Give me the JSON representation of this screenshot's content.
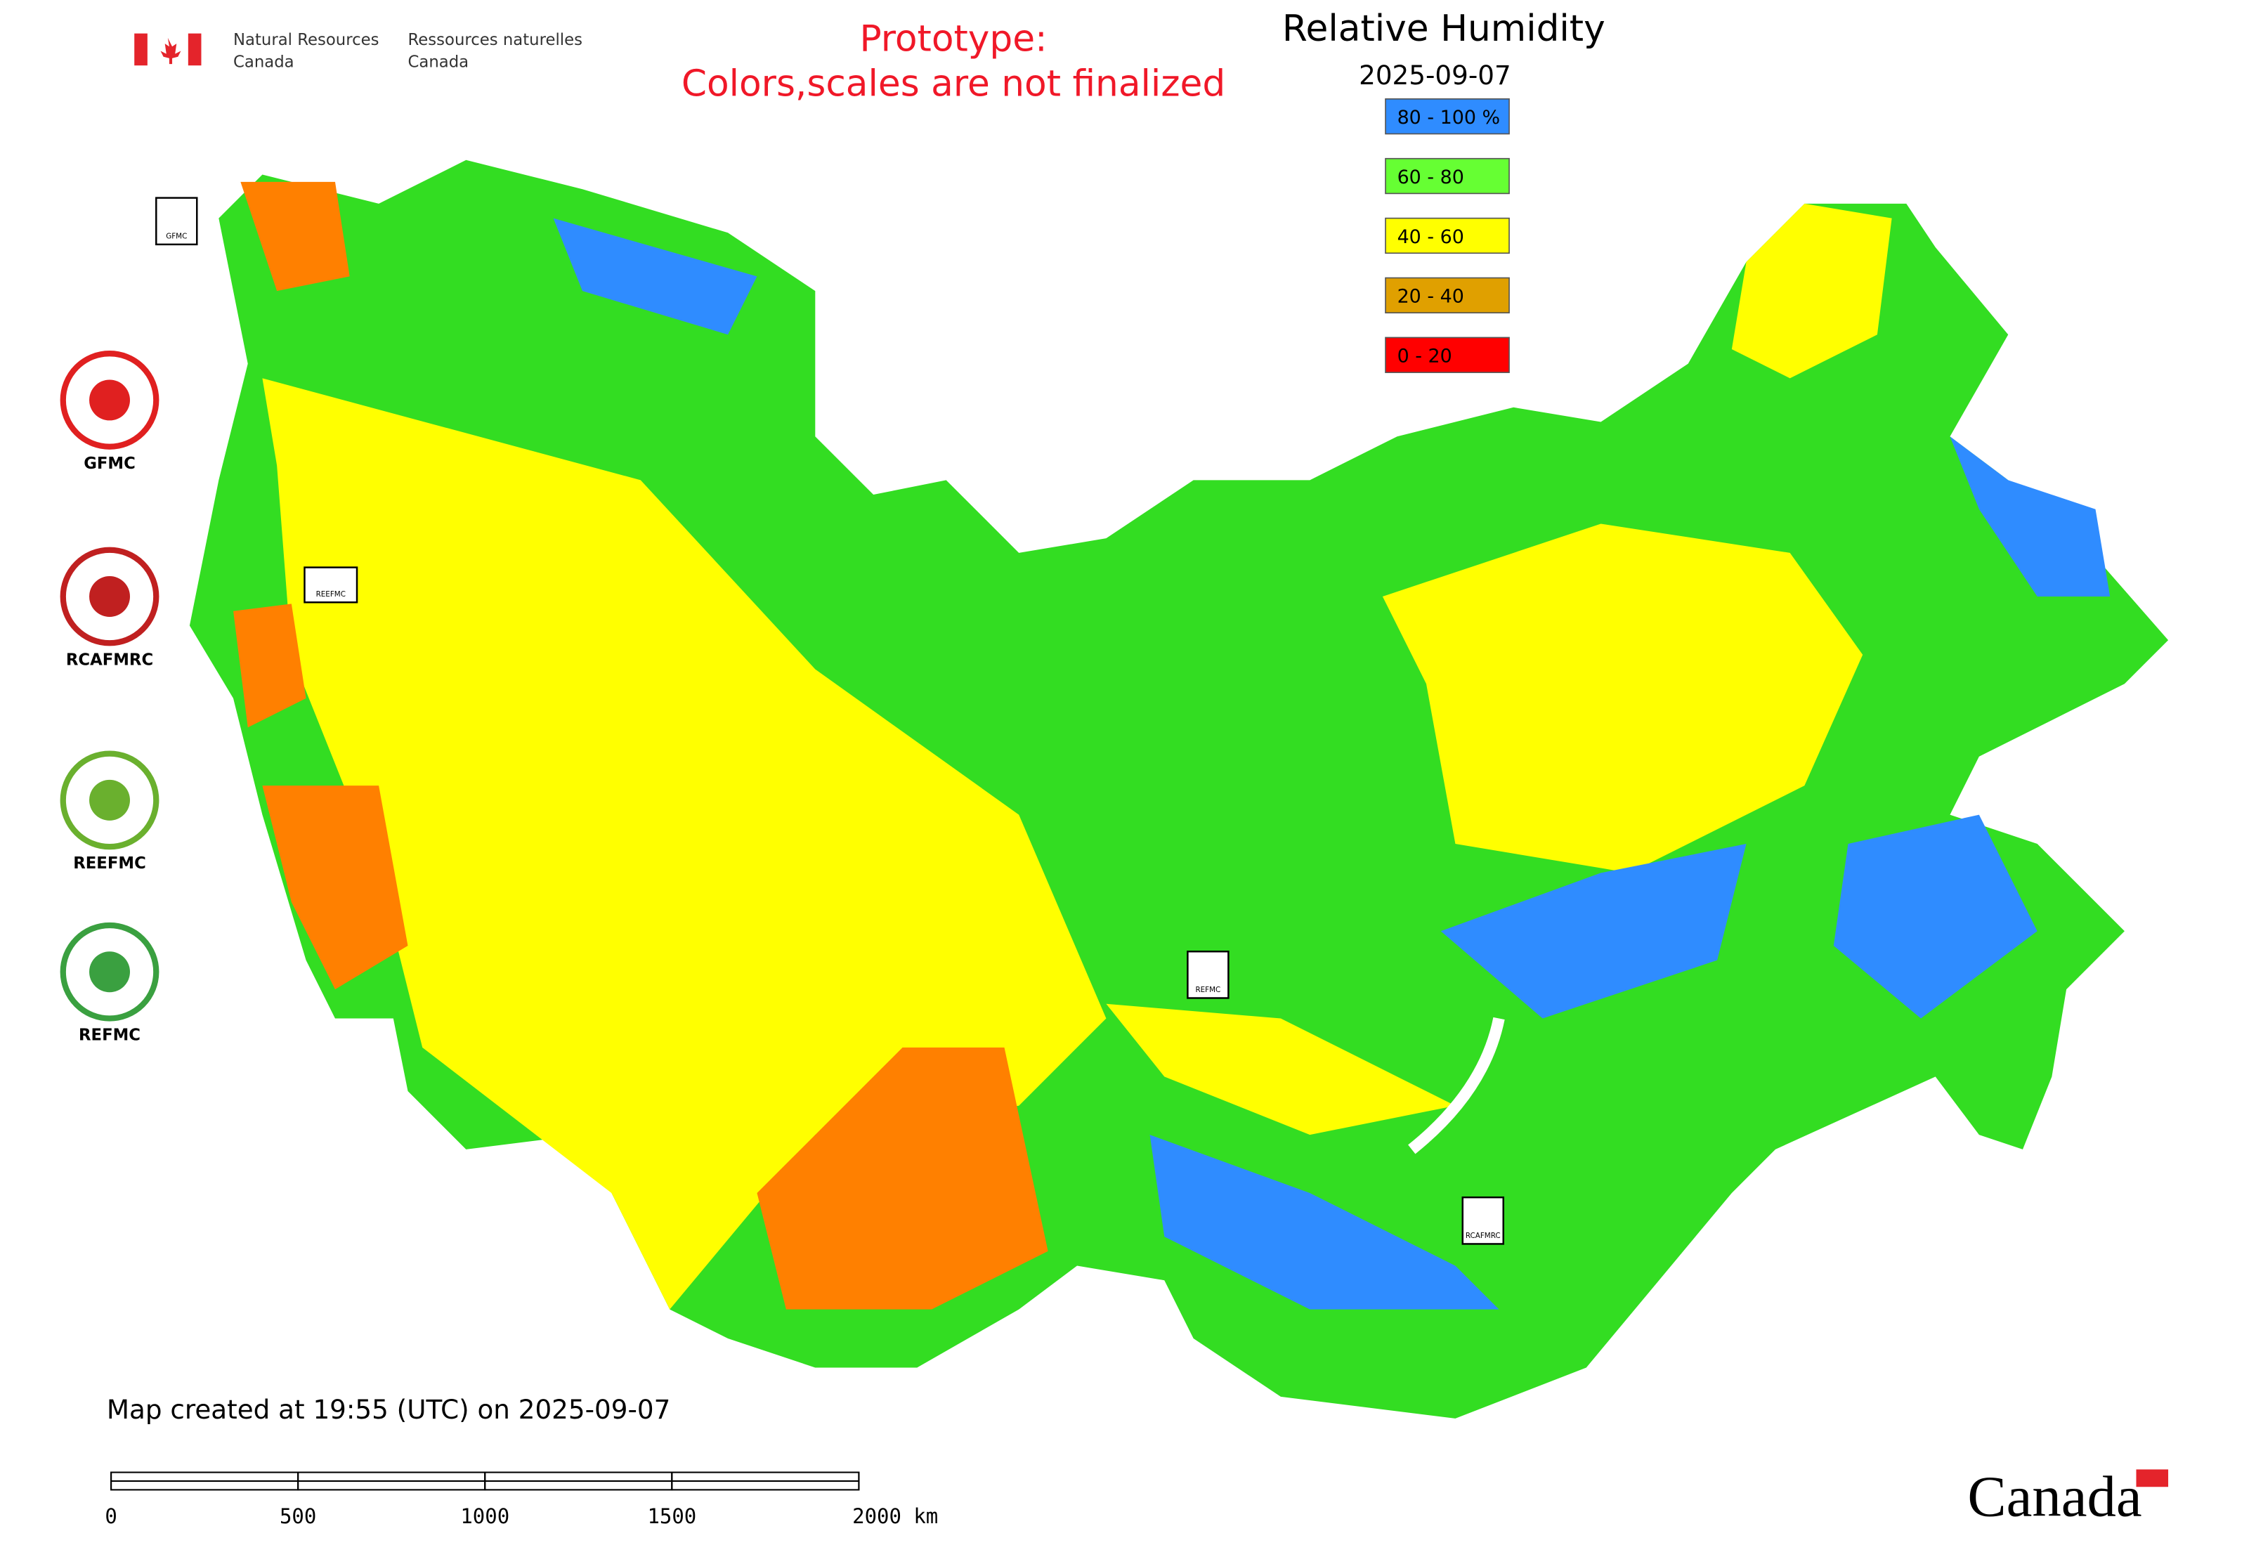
{
  "header": {
    "agency_en": [
      "Natural Resources",
      "Canada"
    ],
    "agency_fr": [
      "Ressources naturelles",
      "Canada"
    ]
  },
  "notice": [
    "Prototype:",
    "Colors,scales are not finalized"
  ],
  "title": "Relative Humidity",
  "date": "2025-09-07",
  "legend": [
    {
      "label": "80 - 100 %",
      "color": "#2f8cff"
    },
    {
      "label": "60 - 80",
      "color": "#66ff33"
    },
    {
      "label": "40 - 60",
      "color": "#ffff00"
    },
    {
      "label": "20 - 40",
      "color": "#e0a000"
    },
    {
      "label": "0 - 20",
      "color": "#ff0000"
    }
  ],
  "logos": [
    "GFMC",
    "RCAFMRC",
    "REEFMC",
    "REFMC"
  ],
  "map_badges": [
    "GFMC",
    "REEFMC",
    "REFMC",
    "RCAFMRC"
  ],
  "footer_note": "Map created at 19:55 (UTC) on 2025-09-07",
  "scale_bar": {
    "ticks": [
      0,
      500,
      1000,
      1500,
      {
        "value": 2000,
        "label": "2000 km"
      }
    ]
  },
  "wordmark": "Canada"
}
